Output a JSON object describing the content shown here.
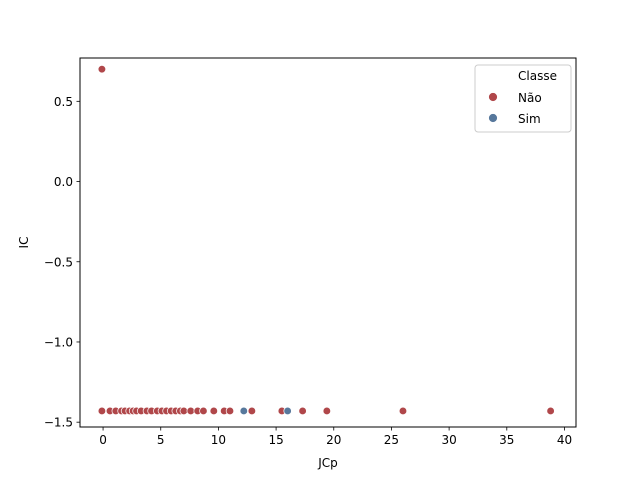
{
  "chart_data": {
    "type": "scatter",
    "xlabel": "JCp",
    "ylabel": "IC",
    "xlim": [
      -2,
      41
    ],
    "ylim": [
      -1.53,
      0.77
    ],
    "xticks": [
      0,
      5,
      10,
      15,
      20,
      25,
      30,
      35,
      40
    ],
    "yticks": [
      -1.5,
      -1.0,
      -0.5,
      0.0,
      0.5
    ],
    "xtick_labels": [
      "0",
      "5",
      "10",
      "15",
      "20",
      "25",
      "30",
      "35",
      "40"
    ],
    "ytick_labels": [
      "−1.5",
      "−1.0",
      "−0.5",
      "0.0",
      "0.5"
    ],
    "grid": false,
    "legend": {
      "title": "Classe",
      "placement": "top-right",
      "entries": [
        "Não",
        "Sim"
      ]
    },
    "colors": {
      "Não": "#b0474a",
      "Sim": "#57789c"
    },
    "series": [
      {
        "name": "Não",
        "x": [
          -0.1,
          -0.1,
          0.6,
          1.1,
          1.6,
          1.9,
          2.3,
          2.6,
          2.9,
          3.3,
          3.8,
          4.2,
          4.7,
          5.1,
          5.5,
          5.9,
          6.3,
          6.7,
          7.0,
          7.6,
          8.2,
          8.7,
          9.6,
          10.5,
          11.0,
          12.9,
          15.5,
          17.3,
          19.4,
          26.0,
          38.8
        ],
        "y": [
          0.7,
          -1.43,
          -1.43,
          -1.43,
          -1.43,
          -1.43,
          -1.43,
          -1.43,
          -1.43,
          -1.43,
          -1.43,
          -1.43,
          -1.43,
          -1.43,
          -1.43,
          -1.43,
          -1.43,
          -1.43,
          -1.43,
          -1.43,
          -1.43,
          -1.43,
          -1.43,
          -1.43,
          -1.43,
          -1.43,
          -1.43,
          -1.43,
          -1.43,
          -1.43,
          -1.43
        ]
      },
      {
        "name": "Sim",
        "x": [
          12.2,
          16.0
        ],
        "y": [
          -1.43,
          -1.43
        ]
      }
    ]
  }
}
